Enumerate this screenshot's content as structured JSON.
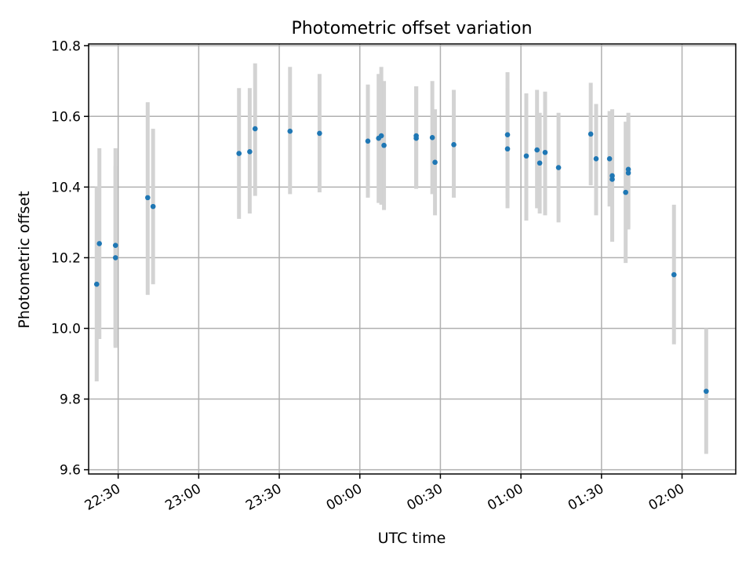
{
  "chart_data": {
    "type": "scatter",
    "title": "Photometric offset variation",
    "xlabel": "UTC time",
    "ylabel": "Photometric offset",
    "x_tick_labels": [
      "22:30",
      "23:00",
      "23:30",
      "00:00",
      "00:30",
      "01:00",
      "01:30",
      "02:00"
    ],
    "y_tick_labels": [
      "9.6",
      "9.8",
      "10.0",
      "10.2",
      "10.4",
      "10.6",
      "10.8"
    ],
    "x_ticks": [
      "22:30",
      "23:00",
      "23:30",
      "00:00",
      "00:30",
      "01:00",
      "01:30",
      "02:00"
    ],
    "y_ticks": [
      9.6,
      9.8,
      10.0,
      10.2,
      10.4,
      10.6,
      10.8
    ],
    "xlim": [
      "22:19",
      "02:20"
    ],
    "ylim": [
      9.588,
      10.805
    ],
    "grid": true,
    "point_color": "#1f77b4",
    "errorbar_color": "#d3d3d3",
    "points": [
      {
        "x": "22:22",
        "y": 10.125,
        "yerr_low": 9.85,
        "yerr_high": 10.4
      },
      {
        "x": "22:23",
        "y": 10.24,
        "yerr_low": 9.97,
        "yerr_high": 10.51
      },
      {
        "x": "22:29",
        "y": 10.235,
        "yerr_low": 9.95,
        "yerr_high": 10.51
      },
      {
        "x": "22:29",
        "y": 10.2,
        "yerr_low": 9.945,
        "yerr_high": 10.46
      },
      {
        "x": "22:41",
        "y": 10.37,
        "yerr_low": 10.095,
        "yerr_high": 10.64
      },
      {
        "x": "22:43",
        "y": 10.345,
        "yerr_low": 10.125,
        "yerr_high": 10.565
      },
      {
        "x": "23:15",
        "y": 10.495,
        "yerr_low": 10.31,
        "yerr_high": 10.68
      },
      {
        "x": "23:19",
        "y": 10.5,
        "yerr_low": 10.325,
        "yerr_high": 10.68
      },
      {
        "x": "23:21",
        "y": 10.565,
        "yerr_low": 10.375,
        "yerr_high": 10.75
      },
      {
        "x": "23:34",
        "y": 10.558,
        "yerr_low": 10.38,
        "yerr_high": 10.74
      },
      {
        "x": "23:45",
        "y": 10.552,
        "yerr_low": 10.385,
        "yerr_high": 10.72
      },
      {
        "x": "00:03",
        "y": 10.53,
        "yerr_low": 10.37,
        "yerr_high": 10.69
      },
      {
        "x": "00:07",
        "y": 10.538,
        "yerr_low": 10.355,
        "yerr_high": 10.72
      },
      {
        "x": "00:08",
        "y": 10.545,
        "yerr_low": 10.35,
        "yerr_high": 10.74
      },
      {
        "x": "00:09",
        "y": 10.518,
        "yerr_low": 10.335,
        "yerr_high": 10.7
      },
      {
        "x": "00:21",
        "y": 10.538,
        "yerr_low": 10.395,
        "yerr_high": 10.685
      },
      {
        "x": "00:21",
        "y": 10.545,
        "yerr_low": 10.4,
        "yerr_high": 10.685
      },
      {
        "x": "00:27",
        "y": 10.54,
        "yerr_low": 10.38,
        "yerr_high": 10.7
      },
      {
        "x": "00:28",
        "y": 10.47,
        "yerr_low": 10.32,
        "yerr_high": 10.62
      },
      {
        "x": "00:35",
        "y": 10.52,
        "yerr_low": 10.37,
        "yerr_high": 10.675
      },
      {
        "x": "00:55",
        "y": 10.508,
        "yerr_low": 10.34,
        "yerr_high": 10.68
      },
      {
        "x": "00:55",
        "y": 10.548,
        "yerr_low": 10.37,
        "yerr_high": 10.725
      },
      {
        "x": "01:02",
        "y": 10.488,
        "yerr_low": 10.305,
        "yerr_high": 10.665
      },
      {
        "x": "01:06",
        "y": 10.505,
        "yerr_low": 10.34,
        "yerr_high": 10.675
      },
      {
        "x": "01:07",
        "y": 10.468,
        "yerr_low": 10.325,
        "yerr_high": 10.61
      },
      {
        "x": "01:09",
        "y": 10.498,
        "yerr_low": 10.32,
        "yerr_high": 10.67
      },
      {
        "x": "01:14",
        "y": 10.455,
        "yerr_low": 10.3,
        "yerr_high": 10.61
      },
      {
        "x": "01:26",
        "y": 10.55,
        "yerr_low": 10.405,
        "yerr_high": 10.695
      },
      {
        "x": "01:28",
        "y": 10.48,
        "yerr_low": 10.32,
        "yerr_high": 10.635
      },
      {
        "x": "01:33",
        "y": 10.48,
        "yerr_low": 10.345,
        "yerr_high": 10.615
      },
      {
        "x": "01:34",
        "y": 10.422,
        "yerr_low": 10.25,
        "yerr_high": 10.615
      },
      {
        "x": "01:34",
        "y": 10.432,
        "yerr_low": 10.245,
        "yerr_high": 10.62
      },
      {
        "x": "01:39",
        "y": 10.385,
        "yerr_low": 10.185,
        "yerr_high": 10.585
      },
      {
        "x": "01:40",
        "y": 10.45,
        "yerr_low": 10.285,
        "yerr_high": 10.61
      },
      {
        "x": "01:40",
        "y": 10.44,
        "yerr_low": 10.28,
        "yerr_high": 10.6
      },
      {
        "x": "01:57",
        "y": 10.152,
        "yerr_low": 9.955,
        "yerr_high": 10.35
      },
      {
        "x": "02:09",
        "y": 9.822,
        "yerr_low": 9.645,
        "yerr_high": 10.0
      }
    ]
  }
}
